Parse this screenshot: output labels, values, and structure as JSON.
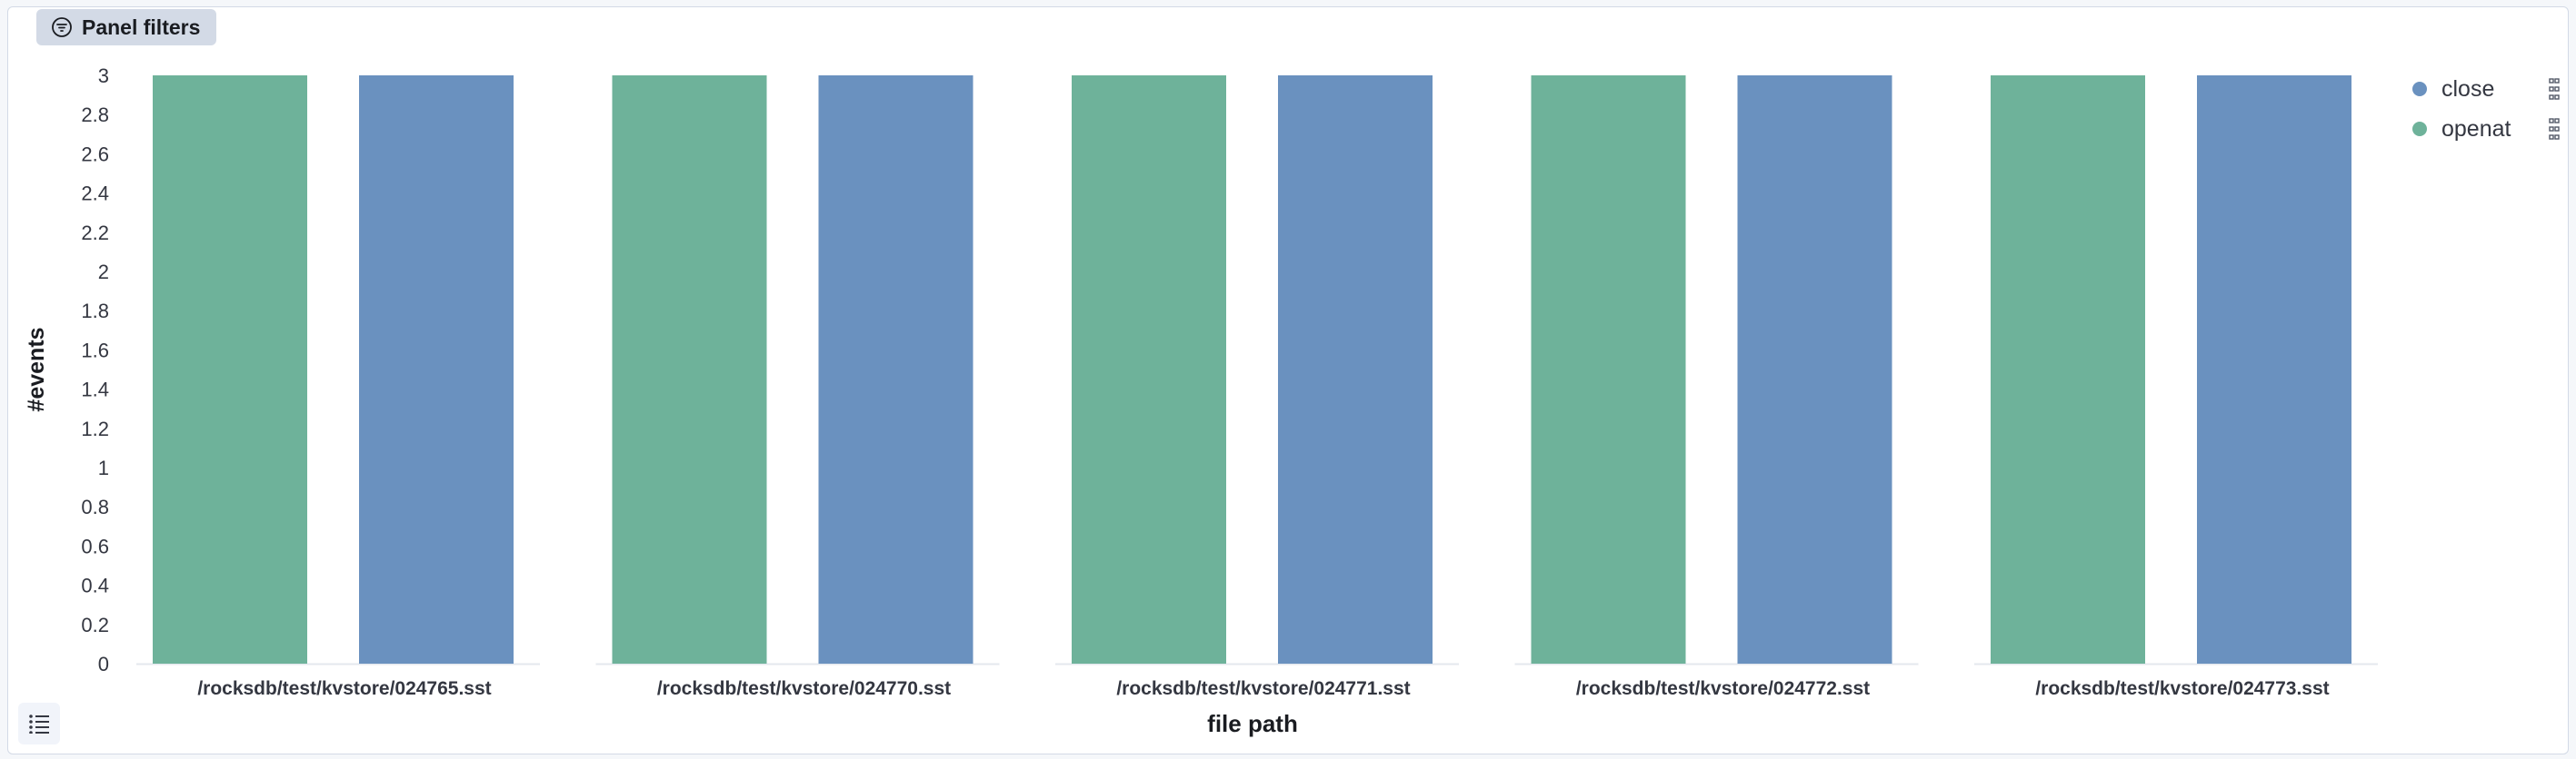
{
  "panel": {
    "filters_label": "Panel filters",
    "filter_icon": "filter-icon",
    "list_icon": "list-icon"
  },
  "legend": {
    "items": [
      {
        "label": "close",
        "color": "#6a91bf"
      },
      {
        "label": "openat",
        "color": "#6eb29a"
      }
    ],
    "menu_icon": "dots-vertical-icon"
  },
  "chart_data": {
    "type": "bar",
    "title": "",
    "xlabel": "file path",
    "ylabel": "#events",
    "ylim": [
      0,
      3
    ],
    "yticks": [
      0,
      0.2,
      0.4,
      0.6,
      0.8,
      1,
      1.2,
      1.4,
      1.6,
      1.8,
      2,
      2.2,
      2.4,
      2.6,
      2.8,
      3
    ],
    "grid": false,
    "legend_position": "top-right",
    "categories": [
      "/rocksdb/test/kvstore/024765.sst",
      "/rocksdb/test/kvstore/024770.sst",
      "/rocksdb/test/kvstore/024771.sst",
      "/rocksdb/test/kvstore/024772.sst",
      "/rocksdb/test/kvstore/024773.sst"
    ],
    "series": [
      {
        "name": "openat",
        "color": "#6eb29a",
        "values": [
          3,
          3,
          3,
          3,
          3
        ]
      },
      {
        "name": "close",
        "color": "#6a91bf",
        "values": [
          3,
          3,
          3,
          3,
          3
        ]
      }
    ]
  }
}
